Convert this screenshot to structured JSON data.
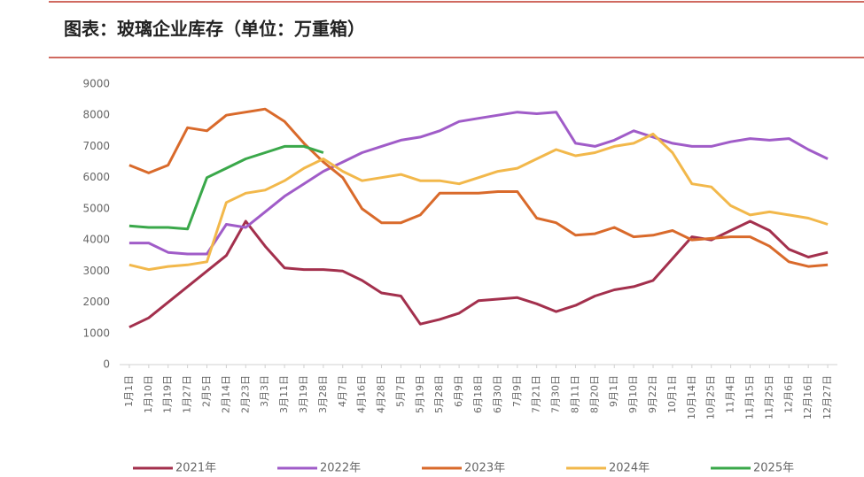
{
  "chart_data": {
    "type": "line",
    "title": "图表：玻璃企业库存（单位：万重箱）",
    "categories": [
      "1月1日",
      "1月10日",
      "1月19日",
      "1月27日",
      "2月5日",
      "2月14日",
      "2月23日",
      "3月3日",
      "3月11日",
      "3月19日",
      "3月28日",
      "4月7日",
      "4月16日",
      "4月28日",
      "5月7日",
      "5月19日",
      "5月28日",
      "6月9日",
      "6月18日",
      "6月30日",
      "7月9日",
      "7月21日",
      "7月30日",
      "8月11日",
      "8月20日",
      "9月1日",
      "9月10日",
      "9月22日",
      "10月1日",
      "10月14日",
      "10月25日",
      "11月4日",
      "11月15日",
      "11月25日",
      "12月6日",
      "12月16日",
      "12月27日"
    ],
    "series": [
      {
        "name": "2021年",
        "color": "#a3304d",
        "values": [
          1200,
          1500,
          2000,
          2500,
          3000,
          3500,
          4600,
          3800,
          3100,
          3050,
          3050,
          3000,
          2700,
          2300,
          2200,
          1300,
          1450,
          1650,
          2050,
          2100,
          2150,
          1950,
          1700,
          1900,
          2200,
          2400,
          2500,
          2700,
          3400,
          4100,
          4000,
          4300,
          4600,
          4300,
          3700,
          3450,
          3600
        ]
      },
      {
        "name": "2022年",
        "color": "#a05cc8",
        "values": [
          3900,
          3900,
          3600,
          3550,
          3550,
          4500,
          4400,
          4900,
          5400,
          5800,
          6200,
          6500,
          6800,
          7000,
          7200,
          7300,
          7500,
          7800,
          7900,
          8000,
          8100,
          8050,
          8100,
          7100,
          7000,
          7200,
          7500,
          7300,
          7100,
          7000,
          7000,
          7150,
          7250,
          7200,
          7250,
          6900,
          6600
        ]
      },
      {
        "name": "2023年",
        "color": "#d96a2b",
        "values": [
          6400,
          6150,
          6400,
          7600,
          7500,
          8000,
          8100,
          8200,
          7800,
          7100,
          6500,
          6000,
          5000,
          4550,
          4550,
          4800,
          5500,
          5500,
          5500,
          5550,
          5550,
          4700,
          4550,
          4150,
          4200,
          4400,
          4100,
          4150,
          4300,
          4000,
          4050,
          4100,
          4100,
          3800,
          3300,
          3150,
          3200
        ]
      },
      {
        "name": "2024年",
        "color": "#f2b84b",
        "values": [
          3200,
          3050,
          3150,
          3200,
          3300,
          5200,
          5500,
          5600,
          5900,
          6300,
          6600,
          6200,
          5900,
          6000,
          6100,
          5900,
          5900,
          5800,
          6000,
          6200,
          6300,
          6600,
          6900,
          6700,
          6800,
          7000,
          7100,
          7400,
          6800,
          5800,
          5700,
          5100,
          4800,
          4900,
          4800,
          4700,
          4500
        ]
      },
      {
        "name": "2025年",
        "color": "#3aa84a",
        "values": [
          4450,
          4400,
          4400,
          4350,
          6000,
          6300,
          6600,
          6800,
          7000,
          7000,
          6800,
          null,
          null,
          null,
          null,
          null,
          null,
          null,
          null,
          null,
          null,
          null,
          null,
          null,
          null,
          null,
          null,
          null,
          null,
          null,
          null,
          null,
          null,
          null,
          null,
          null,
          null
        ]
      }
    ],
    "ylim": [
      0,
      9000
    ],
    "yticks": [
      0,
      1000,
      2000,
      3000,
      4000,
      5000,
      6000,
      7000,
      8000,
      9000
    ],
    "grid": false
  }
}
